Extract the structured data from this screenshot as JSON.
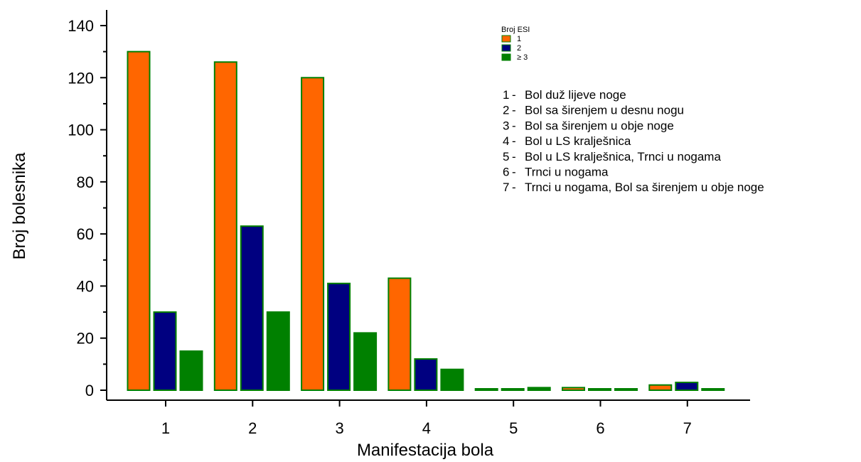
{
  "chart_data": {
    "type": "bar",
    "xlabel": "Manifestacija bola",
    "ylabel": "Broj bolesnika",
    "categories": [
      "1",
      "2",
      "3",
      "4",
      "5",
      "6",
      "7"
    ],
    "ylim": [
      0,
      140
    ],
    "yticks": [
      0,
      20,
      40,
      60,
      80,
      100,
      120,
      140
    ],
    "grid": false,
    "legend": {
      "title": "Broj ESI",
      "placement": "top-right"
    },
    "series": [
      {
        "name": "1",
        "color": "#ff6600",
        "values": [
          130,
          126,
          120,
          43,
          0,
          1,
          2
        ]
      },
      {
        "name": "2",
        "color": "#000080",
        "values": [
          30,
          63,
          41,
          12,
          0,
          0,
          3
        ]
      },
      {
        "name": "≥ 3",
        "color": "#008000",
        "values": [
          15,
          30,
          22,
          8,
          1,
          0,
          0
        ]
      }
    ],
    "annotations": [
      {
        "number": "1",
        "text": "Bol duž lijeve noge"
      },
      {
        "number": "2",
        "text": "Bol sa širenjem u desnu nogu"
      },
      {
        "number": "3",
        "text": "Bol sa širenjem u obje noge"
      },
      {
        "number": "4",
        "text": "Bol u LS kralješnica"
      },
      {
        "number": "5",
        "text": "Bol u LS kralješnica, Trnci u nogama"
      },
      {
        "number": "6",
        "text": "Trnci u nogama"
      },
      {
        "number": "7",
        "text": "Trnci u nogama, Bol sa širenjem u obje noge"
      }
    ],
    "bar_outline_color": "#008000"
  }
}
